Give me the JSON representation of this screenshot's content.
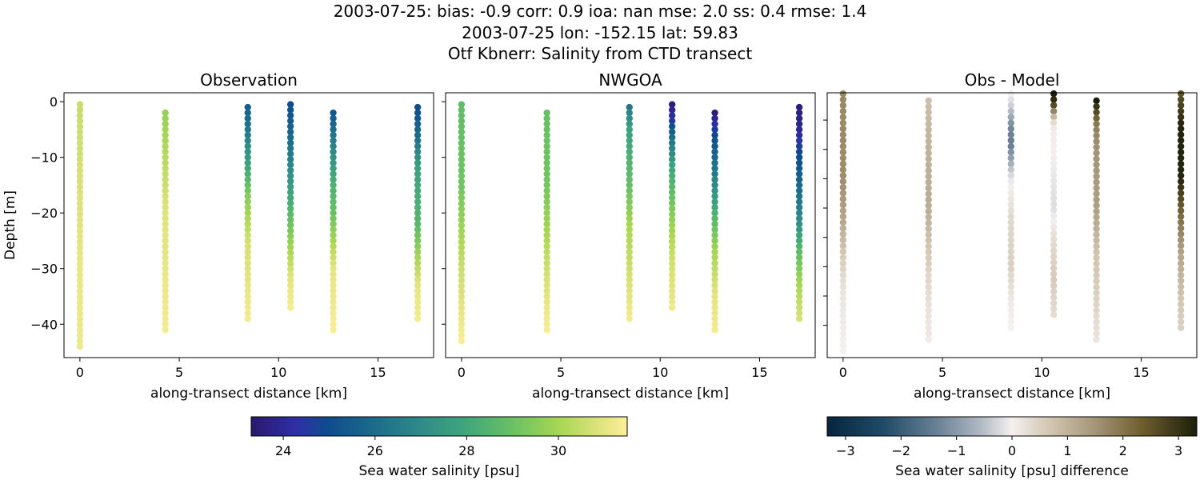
{
  "suptitle": {
    "line1": "2003-07-25: bias: -0.9  corr: 0.9  ioa: nan  mse: 2.0  ss: 0.4  rmse: 1.4",
    "line2": "2003-07-25 lon: -152.15 lat: 59.83",
    "line3": "Otf Kbnerr: Salinity from CTD transect"
  },
  "chart_data": [
    {
      "type": "scatter",
      "title": "Observation",
      "xlabel": "along-transect distance [km]",
      "ylabel": "Depth [m]",
      "xlim": [
        -0.8,
        17.8
      ],
      "ylim": [
        -46,
        1.6
      ],
      "xticks": [
        0,
        5,
        10,
        15
      ],
      "yticks": [
        0,
        -10,
        -20,
        -30,
        -40
      ],
      "colormap": "haline",
      "clim": [
        23.3,
        31.5
      ],
      "casts": [
        {
          "x": 0,
          "depth_range": [
            -0.5,
            -44
          ],
          "salinity": [
            [
              -0.5,
              30.5
            ],
            [
              -15,
              30.8
            ],
            [
              -30,
              31.1
            ],
            [
              -44,
              31.2
            ]
          ]
        },
        {
          "x": 4.3,
          "depth_range": [
            -2,
            -41
          ],
          "salinity": [
            [
              -2,
              29.7
            ],
            [
              -10,
              30.3
            ],
            [
              -20,
              30.9
            ],
            [
              -41,
              31.3
            ]
          ]
        },
        {
          "x": 8.45,
          "depth_range": [
            -1,
            -39
          ],
          "salinity": [
            [
              -1,
              25.6
            ],
            [
              -6,
              26.6
            ],
            [
              -12,
              28.0
            ],
            [
              -17,
              29.5
            ],
            [
              -25,
              30.7
            ],
            [
              -39,
              31.3
            ]
          ]
        },
        {
          "x": 10.6,
          "depth_range": [
            -0.5,
            -37
          ],
          "salinity": [
            [
              -0.5,
              25.0
            ],
            [
              -8,
              26.2
            ],
            [
              -14,
              27.4
            ],
            [
              -18,
              28.2
            ],
            [
              -25,
              29.7
            ],
            [
              -32,
              31.0
            ],
            [
              -37,
              31.3
            ]
          ]
        },
        {
          "x": 12.75,
          "depth_range": [
            -2,
            -41
          ],
          "salinity": [
            [
              -2,
              25.3
            ],
            [
              -8,
              26.8
            ],
            [
              -14,
              28.2
            ],
            [
              -20,
              29.0
            ],
            [
              -30,
              31.0
            ],
            [
              -41,
              31.4
            ]
          ]
        },
        {
          "x": 17.0,
          "depth_range": [
            -1,
            -39
          ],
          "salinity": [
            [
              -1,
              25.0
            ],
            [
              -6,
              26.0
            ],
            [
              -12,
              27.8
            ],
            [
              -22,
              28.6
            ],
            [
              -27,
              29.8
            ],
            [
              -33,
              31.0
            ],
            [
              -39,
              31.3
            ]
          ]
        }
      ]
    },
    {
      "type": "scatter",
      "title": "NWGOA",
      "xlabel": "along-transect distance [km]",
      "xlim": [
        -0.8,
        17.8
      ],
      "ylim": [
        -46,
        1.6
      ],
      "xticks": [
        0,
        5,
        10,
        15
      ],
      "yticks": [
        0,
        -10,
        -20,
        -30,
        -40
      ],
      "colormap": "haline",
      "clim": [
        23.3,
        31.5
      ],
      "casts": [
        {
          "x": 0,
          "depth_range": [
            -0.5,
            -43
          ],
          "salinity": [
            [
              -0.5,
              28.8
            ],
            [
              -15,
              29.1
            ],
            [
              -22,
              29.8
            ],
            [
              -30,
              30.6
            ],
            [
              -43,
              31.4
            ]
          ]
        },
        {
          "x": 4.3,
          "depth_range": [
            -2,
            -41
          ],
          "salinity": [
            [
              -2,
              28.9
            ],
            [
              -15,
              29.2
            ],
            [
              -22,
              29.9
            ],
            [
              -32,
              30.8
            ],
            [
              -41,
              31.4
            ]
          ]
        },
        {
          "x": 8.45,
          "depth_range": [
            -1,
            -39
          ],
          "salinity": [
            [
              -1,
              26.4
            ],
            [
              -5,
              27.8
            ],
            [
              -15,
              28.9
            ],
            [
              -22,
              30.0
            ],
            [
              -39,
              31.3
            ]
          ]
        },
        {
          "x": 10.6,
          "depth_range": [
            -0.5,
            -37
          ],
          "salinity": [
            [
              -0.5,
              23.6
            ],
            [
              -3,
              24.3
            ],
            [
              -6,
              26.0
            ],
            [
              -12,
              28.0
            ],
            [
              -20,
              29.5
            ],
            [
              -28,
              30.6
            ],
            [
              -37,
              31.2
            ]
          ]
        },
        {
          "x": 12.75,
          "depth_range": [
            -2,
            -41
          ],
          "salinity": [
            [
              -2,
              23.5
            ],
            [
              -4,
              24.3
            ],
            [
              -7,
              25.2
            ],
            [
              -12,
              26.3
            ],
            [
              -17,
              27.5
            ],
            [
              -21,
              28.6
            ],
            [
              -27,
              30.0
            ],
            [
              -35,
              31.0
            ],
            [
              -41,
              31.3
            ]
          ]
        },
        {
          "x": 17.0,
          "depth_range": [
            -1,
            -39
          ],
          "salinity": [
            [
              -1,
              23.5
            ],
            [
              -5,
              23.9
            ],
            [
              -8,
              24.6
            ],
            [
              -12,
              25.4
            ],
            [
              -18,
              26.4
            ],
            [
              -22,
              27.2
            ],
            [
              -26,
              28.5
            ],
            [
              -32,
              29.9
            ],
            [
              -39,
              30.8
            ]
          ]
        }
      ]
    },
    {
      "type": "scatter",
      "title": "Obs - Model",
      "xlabel": "along-transect distance [km]",
      "xlim": [
        -0.8,
        17.8
      ],
      "ylim": [
        -45.5,
        -0.35
      ],
      "xticks": [
        0,
        5,
        10,
        15
      ],
      "yticks_unlabeled": [
        -5,
        -10,
        -15,
        -20,
        -25,
        -30,
        -35,
        -40
      ],
      "colormap": "diff",
      "clim": [
        -3.3,
        3.3
      ],
      "casts": [
        {
          "x": 0,
          "depth_range": [
            -0.5,
            -44.4
          ],
          "difference": [
            [
              -0.5,
              1.7
            ],
            [
              -15,
              1.6
            ],
            [
              -22,
              1.2
            ],
            [
              -28,
              0.6
            ],
            [
              -34,
              0.2
            ],
            [
              -44.4,
              0.0
            ]
          ]
        },
        {
          "x": 4.3,
          "depth_range": [
            -1.7,
            -42.4
          ],
          "difference": [
            [
              -1.7,
              0.8
            ],
            [
              -10,
              1.0
            ],
            [
              -20,
              1.1
            ],
            [
              -26,
              0.7
            ],
            [
              -32,
              0.4
            ],
            [
              -38,
              0.2
            ],
            [
              -42.4,
              0.1
            ]
          ]
        },
        {
          "x": 8.45,
          "depth_range": [
            -0.5,
            -40.4
          ],
          "difference": [
            [
              -0.5,
              0.0
            ],
            [
              -3,
              -0.4
            ],
            [
              -6,
              -1.2
            ],
            [
              -9,
              -1.4
            ],
            [
              -12,
              -0.8
            ],
            [
              -14,
              -0.3
            ],
            [
              -16,
              0.0
            ],
            [
              -22,
              0.4
            ],
            [
              -30,
              0.5
            ],
            [
              -36,
              0.1
            ],
            [
              -40.4,
              0.0
            ]
          ]
        },
        {
          "x": 10.6,
          "depth_range": [
            -0.5,
            -38.2
          ],
          "difference": [
            [
              -0.5,
              3.3
            ],
            [
              -2,
              3.0
            ],
            [
              -3,
              2.2
            ],
            [
              -4,
              1.2
            ],
            [
              -5,
              0.5
            ],
            [
              -6,
              0.1
            ],
            [
              -15,
              -0.1
            ],
            [
              -20,
              -0.2
            ],
            [
              -25,
              0.3
            ],
            [
              -32,
              0.6
            ],
            [
              -38.2,
              0.3
            ]
          ]
        },
        {
          "x": 12.75,
          "depth_range": [
            -1.7,
            -42.4
          ],
          "difference": [
            [
              -1.7,
              3.3
            ],
            [
              -4,
              2.5
            ],
            [
              -6,
              1.8
            ],
            [
              -10,
              1.5
            ],
            [
              -20,
              1.3
            ],
            [
              -28,
              0.7
            ],
            [
              -35,
              0.5
            ],
            [
              -42.4,
              0.2
            ]
          ]
        },
        {
          "x": 17.0,
          "depth_range": [
            -0.5,
            -40.4
          ],
          "difference": [
            [
              -0.5,
              2.5
            ],
            [
              -3,
              2.8
            ],
            [
              -6,
              3.2
            ],
            [
              -15,
              3.2
            ],
            [
              -19,
              2.5
            ],
            [
              -22,
              2.0
            ],
            [
              -28,
              1.2
            ],
            [
              -35,
              0.7
            ],
            [
              -40.4,
              0.5
            ]
          ]
        }
      ]
    }
  ],
  "colorbars": [
    {
      "label": "Sea water salinity [psu]",
      "range": [
        23.3,
        31.5
      ],
      "ticks": [
        24,
        26,
        28,
        30
      ],
      "colormap": "haline"
    },
    {
      "label": "Sea water salinity [psu] difference",
      "range": [
        -3.33,
        3.33
      ],
      "ticks": [
        -3,
        -2,
        -1,
        0,
        1,
        2,
        3
      ],
      "colormap": "diff"
    }
  ],
  "colormaps": {
    "haline": [
      [
        0,
        "#2a186c"
      ],
      [
        0.12,
        "#2f2fa8"
      ],
      [
        0.2,
        "#0f4b8e"
      ],
      [
        0.32,
        "#1a6a8a"
      ],
      [
        0.45,
        "#2f8a88"
      ],
      [
        0.57,
        "#3fa67c"
      ],
      [
        0.7,
        "#6cc262"
      ],
      [
        0.82,
        "#a8d653"
      ],
      [
        0.92,
        "#dbe27a"
      ],
      [
        1,
        "#fdef9a"
      ]
    ],
    "diff": [
      [
        0,
        "#07253d"
      ],
      [
        0.15,
        "#1f4a66"
      ],
      [
        0.3,
        "#6b8296"
      ],
      [
        0.42,
        "#b3bcc5"
      ],
      [
        0.5,
        "#f4f0ef"
      ],
      [
        0.6,
        "#d3c7b3"
      ],
      [
        0.72,
        "#a6977a"
      ],
      [
        0.85,
        "#6f5f2f"
      ],
      [
        1,
        "#1b1e0a"
      ]
    ]
  }
}
